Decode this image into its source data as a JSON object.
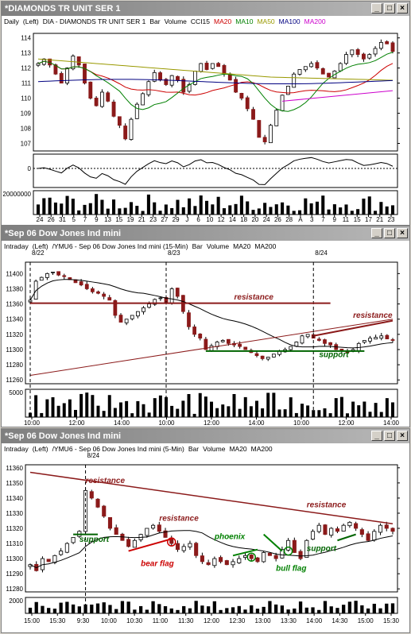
{
  "windows": [
    {
      "title": "*DIAMONDS TR UNIT SER 1",
      "info": [
        "Daily",
        "(Left)",
        "DIA - DIAMONDS TR UNIT SER 1",
        "Bar",
        "Volume",
        "CCI15",
        "MA20",
        "MA10",
        "MA50",
        "MA100",
        "MA200"
      ],
      "info_colors": [
        "#000",
        "#000",
        "#000",
        "#000",
        "#000",
        "#000",
        "#cc0000",
        "#008000",
        "#999900",
        "#000080",
        "#cc00cc"
      ],
      "vol_label": "20000000",
      "cci_label": "0",
      "x_ticks": [
        "24",
        "26",
        "31",
        "5",
        "7",
        "9",
        "13",
        "15",
        "19",
        "21",
        "23",
        "27",
        "29",
        "J",
        "6",
        "10",
        "12",
        "14",
        "18",
        "20",
        "24",
        "26",
        "28",
        "A",
        "3",
        "7",
        "9",
        "11",
        "15",
        "17",
        "21",
        "23"
      ],
      "annotations": []
    },
    {
      "title": "*Sep 06  Dow Jones Ind mini",
      "info": [
        "Intraday",
        "(Left)",
        "/YMU6 - Sep 06  Dow Jones Ind mini (15-Min)",
        "Bar",
        "Volume",
        "MA20",
        "MA200"
      ],
      "info_colors": [
        "#000",
        "#000",
        "#000",
        "#000",
        "#000",
        "#000",
        "#000"
      ],
      "date_markers": [
        "8/22",
        "8/23",
        "8/24"
      ],
      "vol_label": "5000",
      "x_ticks": [
        "10:00",
        "12:00",
        "14:00",
        "10:00",
        "12:00",
        "14:00",
        "10:00",
        "12:00",
        "14:00"
      ],
      "annotations": [
        "resistance",
        "resistance",
        "support"
      ]
    },
    {
      "title": "*Sep 06  Dow Jones Ind mini",
      "info": [
        "Intraday",
        "(Left)",
        "/YMU6 - Sep 06  Dow Jones Ind mini (5-Min)",
        "Bar",
        "Volume",
        "MA20",
        "MA200"
      ],
      "info_colors": [
        "#000",
        "#000",
        "#000",
        "#000",
        "#000",
        "#000",
        "#000"
      ],
      "date_markers": [
        "8/24"
      ],
      "vol_label": "2000",
      "x_ticks": [
        "15:00",
        "15:30",
        "9:30",
        "10:00",
        "10:30",
        "11:00",
        "11:30",
        "12:00",
        "12:30",
        "13:00",
        "13:30",
        "14:00",
        "14:30",
        "15:00",
        "15:30"
      ],
      "annotations": [
        "resistance",
        "resistance",
        "resistance",
        "support",
        "support",
        "bear flag",
        "phoenix",
        "bull flag"
      ]
    }
  ],
  "chart_data": [
    {
      "type": "bar",
      "title": "*DIAMONDS TR UNIT SER 1",
      "ylim": [
        106.5,
        114.3
      ],
      "y_ticks": [
        107,
        108,
        109,
        110,
        111,
        112,
        113,
        114
      ],
      "closes": [
        112.3,
        112.6,
        112.2,
        111.6,
        111.0,
        112.0,
        112.8,
        112.2,
        111.0,
        110.0,
        109.5,
        110.4,
        109.8,
        108.8,
        108.2,
        107.3,
        108.6,
        109.6,
        110.3,
        111.1,
        111.7,
        111.2,
        110.9,
        111.5,
        111.2,
        110.4,
        110.9,
        111.8,
        112.3,
        111.9,
        112.3,
        112.1,
        111.6,
        111.2,
        110.4,
        110.0,
        109.3,
        108.6,
        107.4,
        107.1,
        108.2,
        109.2,
        110.2,
        110.8,
        111.6,
        111.9,
        112.1,
        112.3,
        112.0,
        111.6,
        111.4,
        111.8,
        112.3,
        112.9,
        113.2,
        112.9,
        112.6,
        112.9,
        113.3,
        113.7,
        113.6,
        113.1
      ],
      "vol_ticks": [
        20000000
      ],
      "cci_ticks": [
        0
      ]
    },
    {
      "type": "bar",
      "title": "*Sep 06  Dow Jones Ind mini (15-Min)",
      "ylim": [
        11255,
        11415
      ],
      "y_ticks": [
        11260,
        11280,
        11300,
        11320,
        11340,
        11360,
        11380,
        11400
      ],
      "closes": [
        11365,
        11390,
        11395,
        11400,
        11402,
        11398,
        11396,
        11392,
        11388,
        11385,
        11380,
        11376,
        11374,
        11370,
        11365,
        11345,
        11336,
        11340,
        11345,
        11350,
        11355,
        11360,
        11366,
        11368,
        11362,
        11380,
        11370,
        11350,
        11330,
        11320,
        11315,
        11300,
        11305,
        11310,
        11312,
        11308,
        11306,
        11304,
        11300,
        11296,
        11292,
        11288,
        11290,
        11294,
        11298,
        11300,
        11304,
        11310,
        11318,
        11320,
        11315,
        11312,
        11308,
        11306,
        11300,
        11298,
        11296,
        11300,
        11308,
        11312,
        11315,
        11316,
        11318,
        11314,
        11312
      ],
      "levels": {
        "resistance_flat": 11361,
        "support": 11298
      }
    },
    {
      "type": "bar",
      "title": "*Sep 06  Dow Jones Ind mini (5-Min)",
      "ylim": [
        11278,
        11362
      ],
      "y_ticks": [
        11280,
        11290,
        11300,
        11310,
        11320,
        11330,
        11340,
        11350,
        11360
      ],
      "closes": [
        11296,
        11292,
        11300,
        11298,
        11302,
        11305,
        11310,
        11314,
        11318,
        11345,
        11340,
        11334,
        11328,
        11320,
        11316,
        11312,
        11308,
        11312,
        11316,
        11320,
        11322,
        11318,
        11314,
        11310,
        11306,
        11308,
        11310,
        11302,
        11298,
        11296,
        11300,
        11298,
        11296,
        11298,
        11300,
        11302,
        11300,
        11298,
        11304,
        11302,
        11300,
        11306,
        11312,
        11304,
        11300,
        11312,
        11318,
        11322,
        11316,
        11320,
        11318,
        11322,
        11324,
        11320,
        11316,
        11312,
        11318,
        11322,
        11320,
        11318
      ],
      "levels": {
        "resistance": 11353,
        "support": 11316
      }
    }
  ]
}
